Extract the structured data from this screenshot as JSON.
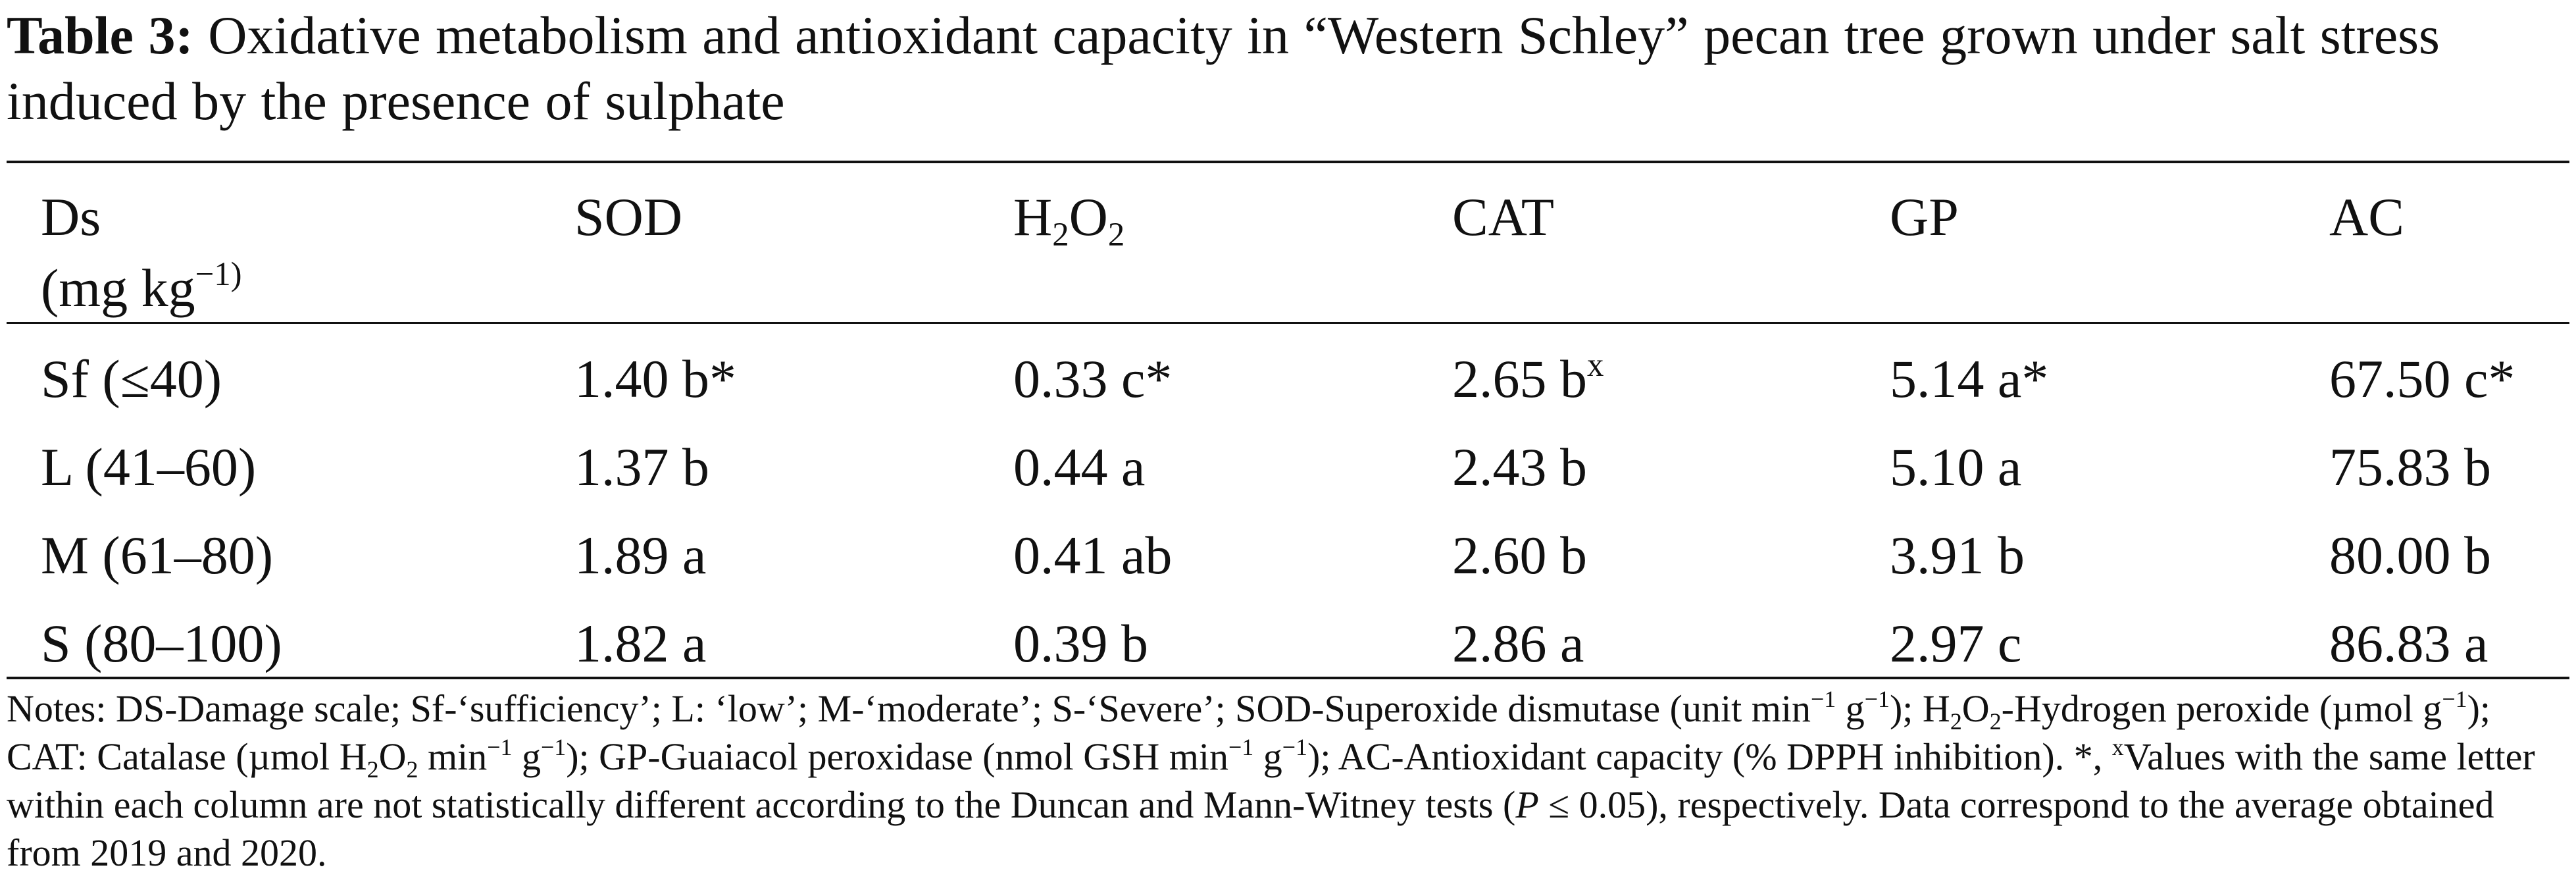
{
  "caption": {
    "label": "Table 3:",
    "text": "Oxidative metabolism and antioxidant capacity in “Western Schley” pecan tree grown under salt stress induced by the presence of sulphate"
  },
  "table": {
    "headers": {
      "ds": "Ds",
      "ds_unit_pre": "(mg kg",
      "ds_unit_sup": "−1)",
      "ds_unit_post": ")",
      "sod": "SOD",
      "h2o2_a": "H",
      "h2o2_sub1": "2",
      "h2o2_b": "O",
      "h2o2_sub2": "2",
      "cat": "CAT",
      "gp": "GP",
      "ac": "AC"
    },
    "rows": [
      {
        "ds": "Sf (≤40)",
        "sod": "1.40 b*",
        "h2o2": "0.33 c*",
        "cat": "2.65 b",
        "cat_sup": "x",
        "gp": "5.14 a*",
        "ac": "67.50 c*"
      },
      {
        "ds": "L (41–60)",
        "sod": "1.37 b",
        "h2o2": "0.44 a",
        "cat": "2.43 b",
        "cat_sup": "",
        "gp": "5.10 a",
        "ac": "75.83 b"
      },
      {
        "ds": "M (61–80)",
        "sod": "1.89 a",
        "h2o2": "0.41 ab",
        "cat": "2.60 b",
        "cat_sup": "",
        "gp": "3.91 b",
        "ac": "80.00 b"
      },
      {
        "ds": "S (80–100)",
        "sod": "1.82 a",
        "h2o2": "0.39 b",
        "cat": "2.86 a",
        "cat_sup": "",
        "gp": "2.97 c",
        "ac": "86.83 a"
      }
    ]
  },
  "notes": {
    "p1": "Notes: DS-Damage scale; Sf-‘sufficiency’; L: ‘low’; M-‘moderate’; S-‘Severe’; SOD-Superoxide dismutase (unit min",
    "p1_sup1": "−1",
    "p1_b": " g",
    "p1_sup2": "−1",
    "p1_c": "); H",
    "p1_sub1": "2",
    "p1_d": "O",
    "p1_sub2": "2",
    "p1_e": "-Hydrogen peroxide (µmol g",
    "p1_sup3": "−1",
    "p1_f": "); CAT: Catalase (µmol H",
    "p1_sub3": "2",
    "p1_g": "O",
    "p1_sub4": "2",
    "p1_h": " min",
    "p1_sup4": "−1",
    "p1_i": " g",
    "p1_sup5": "−1",
    "p1_j": "); GP-Guaiacol peroxidase (nmol GSH min",
    "p1_sup6": "−1",
    "p1_k": " g",
    "p1_sup7": "−1",
    "p1_l": "); AC-Antioxidant capacity (% DPPH inhibition). *, ",
    "p1_sup8": "x",
    "p1_m": "Values with the same letter within each column are not statistically different according to the Duncan and Mann-Witney tests (",
    "p1_p": "P",
    "p1_n": " ≤ 0.05), respectively. Data correspond to the average obtained from 2019 and 2020."
  }
}
